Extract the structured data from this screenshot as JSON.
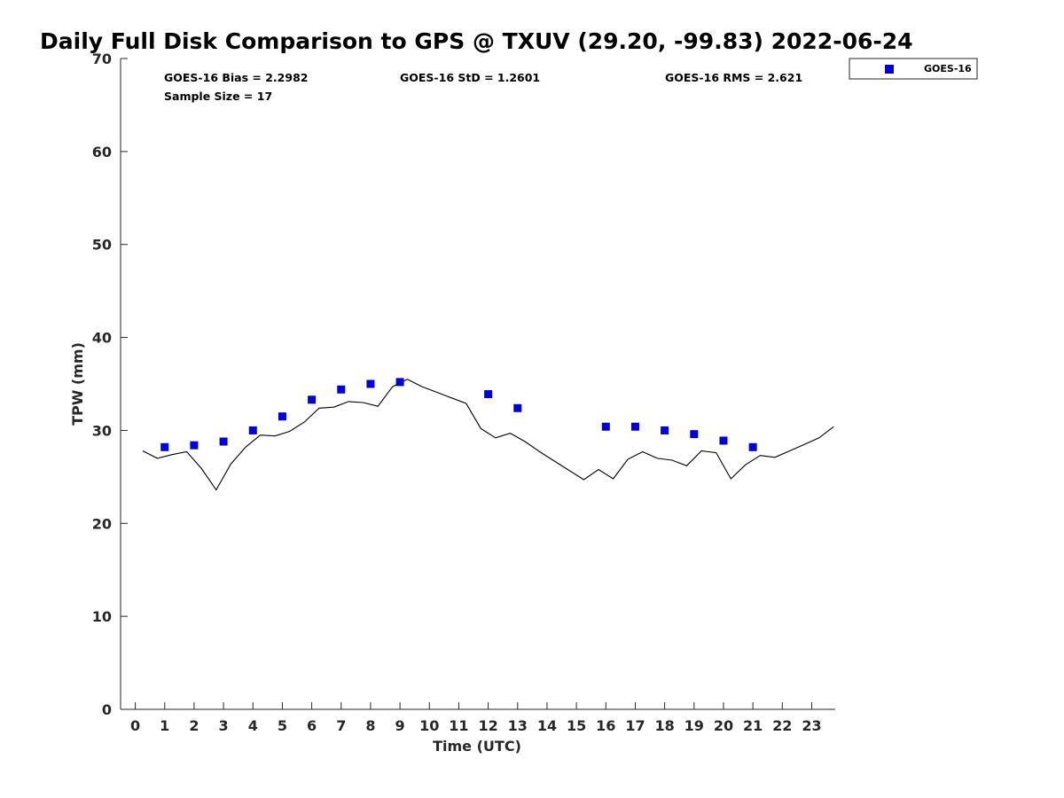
{
  "chart_data": {
    "type": "scatter",
    "title": "Daily Full Disk Comparison to GPS @ TXUV (29.20, -99.83) 2022-06-24",
    "xlabel": "Time (UTC)",
    "ylabel": "TPW (mm)",
    "xlim": [
      -0.5,
      23.8
    ],
    "ylim": [
      0,
      70
    ],
    "x_ticks": [
      0,
      1,
      2,
      3,
      4,
      5,
      6,
      7,
      8,
      9,
      10,
      11,
      12,
      13,
      14,
      15,
      16,
      17,
      18,
      19,
      20,
      21,
      22,
      23
    ],
    "x_tick_labels": [
      "0",
      "1",
      "2",
      "3",
      "4",
      "5",
      "6",
      "7",
      "8",
      "9",
      "10",
      "11",
      "12",
      "13",
      "14",
      "15",
      "16",
      "17",
      "18",
      "19",
      "20",
      "21",
      "22",
      "23"
    ],
    "y_ticks": [
      0,
      10,
      20,
      30,
      40,
      50,
      60,
      70
    ],
    "y_tick_labels": [
      "0",
      "10",
      "20",
      "30",
      "40",
      "50",
      "60",
      "70"
    ],
    "grid": false,
    "legend_position": "top-right, outside plot",
    "stats": {
      "bias": "GOES-16 Bias = 2.2982",
      "std": "GOES-16 StD = 1.2601",
      "rms": "GOES-16 RMS = 2.621",
      "sample_size": "Sample Size = 17"
    },
    "series": [
      {
        "name": "GOES-16",
        "kind": "scatter",
        "color": "#0000dd",
        "marker": "square",
        "x": [
          1,
          2,
          3,
          4,
          5,
          6,
          7,
          8,
          9,
          12,
          13,
          16,
          17,
          18,
          19,
          20,
          21
        ],
        "y": [
          28.2,
          28.4,
          28.8,
          30.0,
          31.5,
          33.3,
          34.4,
          35.0,
          35.2,
          33.9,
          32.4,
          30.4,
          30.4,
          30.0,
          29.6,
          28.9,
          28.2
        ]
      },
      {
        "kind": "line",
        "color": "#000000",
        "x": [
          0.25,
          0.75,
          1.25,
          1.75,
          2.25,
          2.75,
          3.25,
          3.75,
          4.25,
          4.75,
          5.25,
          5.75,
          6.25,
          6.75,
          7.25,
          7.75,
          8.25,
          8.75,
          9.25,
          9.75,
          10.25,
          10.75,
          11.25,
          11.75,
          12.25,
          12.75,
          13.25,
          13.75,
          14.25,
          14.75,
          15.25,
          15.75,
          16.25,
          16.75,
          17.25,
          17.75,
          18.25,
          18.75,
          19.25,
          19.75,
          20.25,
          20.75,
          21.25,
          21.75,
          22.25,
          22.75,
          23.25,
          23.75
        ],
        "y": [
          27.8,
          27.0,
          27.4,
          27.7,
          25.9,
          23.6,
          26.4,
          28.2,
          29.5,
          29.4,
          29.9,
          30.9,
          32.4,
          32.5,
          33.1,
          33.0,
          32.6,
          34.7,
          35.5,
          34.7,
          34.1,
          33.5,
          32.9,
          30.2,
          29.2,
          29.7,
          28.8,
          27.7,
          26.7,
          25.7,
          24.7,
          25.8,
          24.8,
          26.9,
          27.7,
          27.0,
          26.8,
          26.2,
          27.8,
          27.6,
          24.8,
          26.3,
          27.3,
          27.1,
          27.8,
          28.5,
          29.2,
          30.4
        ]
      }
    ]
  }
}
